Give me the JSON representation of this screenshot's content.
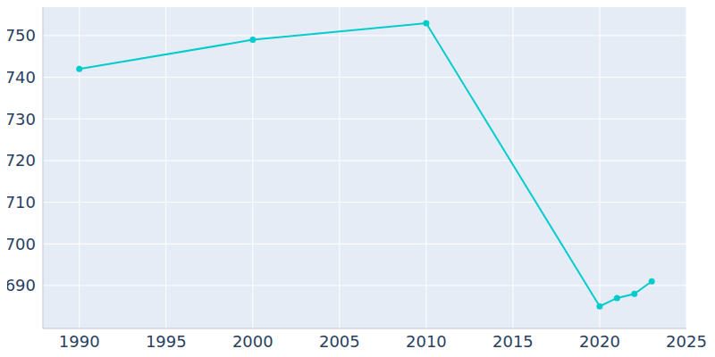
{
  "chart_data": {
    "type": "line",
    "x": [
      1990,
      2000,
      2010,
      2020,
      2021,
      2022,
      2023
    ],
    "values": [
      742,
      749,
      753,
      685,
      687,
      688,
      691
    ],
    "color": "#00cccc",
    "xlim": [
      1987.9,
      2025
    ],
    "xticks": [
      1990,
      1995,
      2000,
      2005,
      2010,
      2015,
      2020,
      2025
    ],
    "ylim": [
      679.7,
      757.7
    ],
    "yticks": [
      690,
      700,
      710,
      720,
      730,
      740,
      750
    ],
    "grid": true,
    "marker": "circle"
  }
}
